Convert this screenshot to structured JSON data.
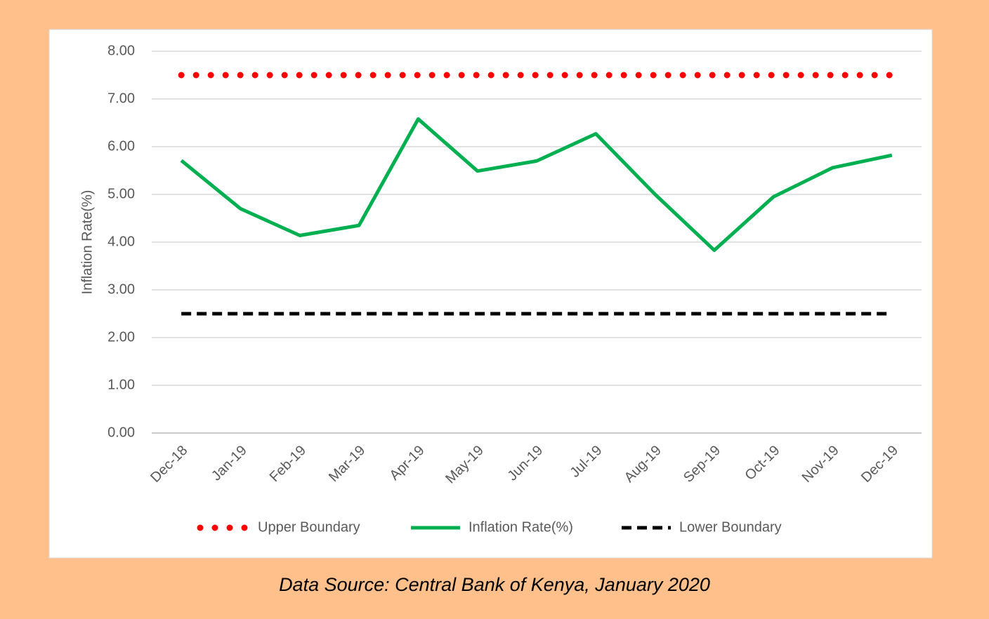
{
  "chart_data": {
    "type": "line",
    "y_label": "Inflation Rate(%)",
    "categories": [
      "Dec-18",
      "Jan-19",
      "Feb-19",
      "Mar-19",
      "Apr-19",
      "May-19",
      "Jun-19",
      "Jul-19",
      "Aug-19",
      "Sep-19",
      "Oct-19",
      "Nov-19",
      "Dec-19"
    ],
    "series": [
      {
        "name": "Upper Boundary",
        "color": "#ff0000",
        "style": "dotted",
        "values": [
          7.5,
          7.5,
          7.5,
          7.5,
          7.5,
          7.5,
          7.5,
          7.5,
          7.5,
          7.5,
          7.5,
          7.5,
          7.5
        ]
      },
      {
        "name": "Inflation Rate(%)",
        "color": "#00b050",
        "style": "solid",
        "values": [
          5.71,
          4.7,
          4.14,
          4.35,
          6.58,
          5.49,
          5.7,
          6.27,
          5.0,
          3.83,
          4.95,
          5.56,
          5.82
        ]
      },
      {
        "name": "Lower Boundary",
        "color": "#000000",
        "style": "dashed",
        "values": [
          2.5,
          2.5,
          2.5,
          2.5,
          2.5,
          2.5,
          2.5,
          2.5,
          2.5,
          2.5,
          2.5,
          2.5,
          2.5
        ]
      }
    ],
    "ylim": [
      0,
      8
    ],
    "yticks": [
      {
        "value": 0,
        "label": "0.00"
      },
      {
        "value": 1,
        "label": "1.00"
      },
      {
        "value": 2,
        "label": "2.00"
      },
      {
        "value": 3,
        "label": "3.00"
      },
      {
        "value": 4,
        "label": "4.00"
      },
      {
        "value": 5,
        "label": "5.00"
      },
      {
        "value": 6,
        "label": "6.00"
      },
      {
        "value": 7,
        "label": "7.00"
      },
      {
        "value": 8,
        "label": "8.00"
      }
    ],
    "grid": true,
    "legend": "bottom",
    "source": "Data Source: Central Bank of Kenya, January 2020"
  }
}
